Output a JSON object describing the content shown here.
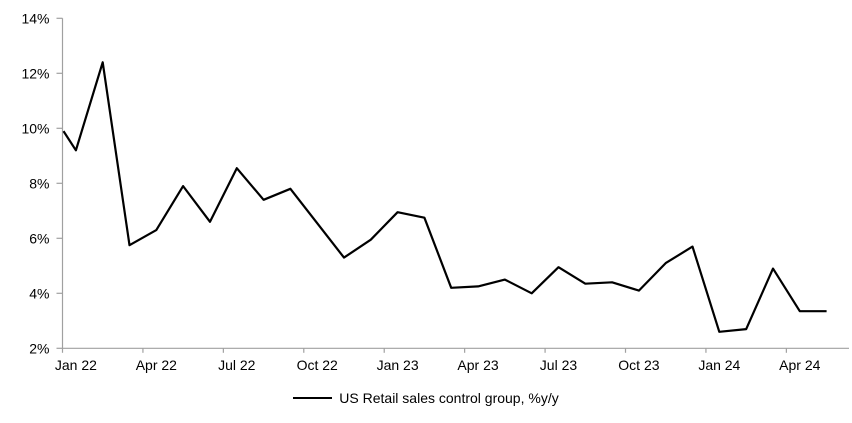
{
  "chart_data": {
    "type": "line",
    "title": "",
    "xlabel": "",
    "ylabel": "",
    "grid": "off",
    "ylim": [
      2,
      14
    ],
    "ytick_step": 2,
    "ytick_labels": [
      "2%",
      "4%",
      "6%",
      "8%",
      "10%",
      "12%",
      "14%"
    ],
    "xtick_labels": [
      "Jan 22",
      "Apr 22",
      "Jul 22",
      "Oct 22",
      "Jan 23",
      "Apr 23",
      "Jul 23",
      "Oct 23",
      "Jan 24",
      "Apr 24"
    ],
    "xtick_label_every_n_months": 3,
    "x_categories": [
      "Jan 22",
      "Feb 22",
      "Mar 22",
      "Apr 22",
      "May 22",
      "Jun 22",
      "Jul 22",
      "Aug 22",
      "Sep 22",
      "Oct 22",
      "Nov 22",
      "Dec 22",
      "Jan 23",
      "Feb 23",
      "Mar 23",
      "Apr 23",
      "May 23",
      "Jun 23",
      "Jul 23",
      "Aug 23",
      "Sep 23",
      "Oct 23",
      "Nov 23",
      "Dec 23",
      "Jan 24",
      "Feb 24",
      "Mar 24",
      "Apr 24",
      "May 24"
    ],
    "series": [
      {
        "name": "US Retail sales control group, %y/y",
        "color": "#000000",
        "values": [
          9.2,
          12.4,
          5.75,
          6.3,
          7.9,
          6.6,
          8.55,
          7.4,
          7.8,
          6.55,
          5.3,
          5.95,
          6.95,
          6.75,
          4.2,
          4.25,
          4.5,
          4.0,
          4.95,
          4.35,
          4.4,
          4.1,
          5.1,
          5.7,
          2.6,
          2.7,
          4.9,
          3.35,
          3.35
        ]
      }
    ],
    "edge_entry_value": 9.9,
    "legend": {
      "label": "US Retail sales control group, %y/y",
      "position": "bottom-center"
    },
    "colors": {
      "series_line": "#000000",
      "axis": "#a0a0a0",
      "text": "#000000",
      "background": "#ffffff"
    }
  }
}
